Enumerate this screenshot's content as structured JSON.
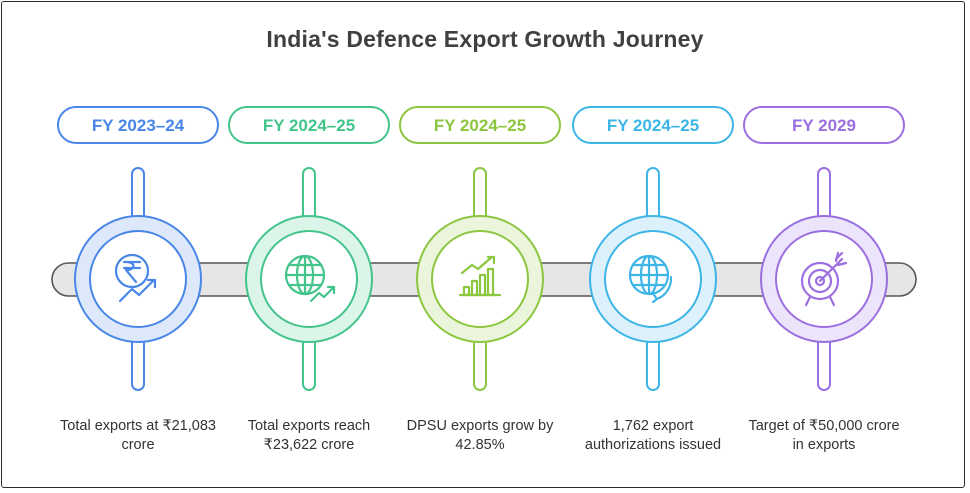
{
  "title": "India's Defence Export Growth Journey",
  "milestones": [
    {
      "period": "FY 2023–24",
      "description": "Total exports at ₹21,083 crore",
      "icon": "rupee-growth-icon",
      "color": "#4a86e8",
      "fill": "#dde9fb"
    },
    {
      "period": "FY 2024–25",
      "description": "Total exports reach ₹23,622 crore",
      "icon": "globe-growth-icon",
      "color": "#43c48a",
      "fill": "#dcf5e9"
    },
    {
      "period": "FY 2024–25",
      "description": "DPSU exports grow by 42.85%",
      "icon": "bar-chart-growth-icon",
      "color": "#8cc63f",
      "fill": "#eaf5dc"
    },
    {
      "period": "FY 2024–25",
      "description": "1,762 export authorizations issued",
      "icon": "globe-refresh-icon",
      "color": "#3db5e6",
      "fill": "#dcf1fb"
    },
    {
      "period": "FY 2029",
      "description": "Target of ₹50,000 crore in exports",
      "icon": "target-icon",
      "color": "#9b6fe0",
      "fill": "#ece4fa"
    }
  ]
}
